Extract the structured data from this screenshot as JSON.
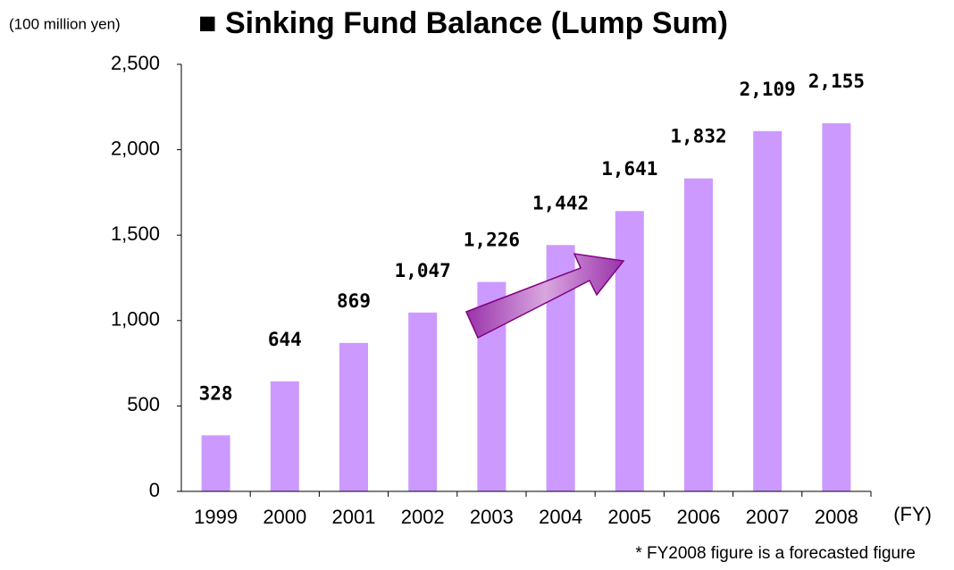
{
  "chart_data": {
    "type": "bar",
    "title": "■ Sinking Fund Balance (Lump Sum)",
    "y_label": "(100 million yen)",
    "x_label": "(FY)",
    "note": "* FY2008 figure is a forecasted figure",
    "categories": [
      "1999",
      "2000",
      "2001",
      "2002",
      "2003",
      "2004",
      "2005",
      "2006",
      "2007",
      "2008"
    ],
    "values": [
      328,
      644,
      869,
      1047,
      1226,
      1442,
      1641,
      1832,
      2109,
      2155
    ],
    "value_labels": [
      "328",
      "644",
      "869",
      "1,047",
      "1,226",
      "1,442",
      "1,641",
      "1,832",
      "2,109",
      "2,155"
    ],
    "color": "#cc99ff",
    "ylim": [
      0,
      2500
    ],
    "yticks": [
      0,
      500,
      {
        "value": 1000,
        "label": "1,000"
      },
      {
        "value": 1500,
        "label": "1,500"
      },
      {
        "value": 2000,
        "label": "2,000"
      },
      {
        "value": 2500,
        "label": "2,500"
      }
    ],
    "grid": false
  }
}
